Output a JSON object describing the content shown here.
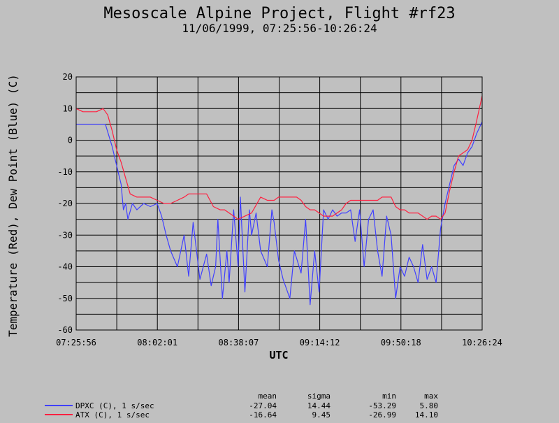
{
  "chart_data": {
    "type": "line",
    "title": "Mesoscale Alpine Project, Flight #rf23",
    "subtitle": "11/06/1999, 07:25:56-10:26:24",
    "xlabel": "UTC",
    "ylabel": "Temperature (Red), Dew Point (Blue) (C)",
    "x_ticks": [
      "07:25:56",
      "08:02:01",
      "08:38:07",
      "09:14:12",
      "09:50:18",
      "10:26:24"
    ],
    "x_range_minutes": [
      0,
      180.47
    ],
    "y_ticks": [
      "20",
      "10",
      "0",
      "-10",
      "-20",
      "-30",
      "-40",
      "-50",
      "-60"
    ],
    "ylim": [
      -60,
      20
    ],
    "grid": true,
    "series": [
      {
        "name": "DPXC (C), 1 s/sec",
        "color": "#4040ff",
        "x_minutes": [
          0,
          5,
          10,
          13,
          16,
          18,
          20,
          21,
          22,
          23,
          25,
          27,
          30,
          33,
          36,
          38,
          40,
          42,
          45,
          48,
          50,
          52,
          55,
          58,
          60,
          62,
          63,
          65,
          67,
          68,
          70,
          72,
          73,
          75,
          77,
          78,
          80,
          82,
          85,
          87,
          88,
          90,
          92,
          95,
          97,
          100,
          102,
          104,
          106,
          108,
          110,
          112,
          114,
          116,
          118,
          120,
          122,
          124,
          126,
          128,
          130,
          132,
          134,
          136,
          138,
          140,
          142,
          144,
          146,
          148,
          150,
          152,
          154,
          156,
          158,
          160,
          162,
          164,
          166,
          168,
          170,
          172,
          174,
          176,
          178,
          180.47
        ],
        "values": [
          5,
          5,
          5,
          5,
          -2,
          -8,
          -14,
          -22,
          -20,
          -25,
          -20,
          -22,
          -20,
          -21,
          -20,
          -24,
          -30,
          -35,
          -40,
          -30,
          -43,
          -26,
          -44,
          -36,
          -46,
          -40,
          -25,
          -50,
          -35,
          -45,
          -22,
          -40,
          -18,
          -48,
          -22,
          -30,
          -23,
          -35,
          -40,
          -22,
          -26,
          -38,
          -44,
          -50,
          -35,
          -42,
          -25,
          -52,
          -35,
          -48,
          -22,
          -25,
          -22,
          -24,
          -23,
          -23,
          -22,
          -32,
          -22,
          -40,
          -25,
          -22,
          -35,
          -43,
          -24,
          -30,
          -50,
          -40,
          -43,
          -37,
          -40,
          -45,
          -33,
          -44,
          -40,
          -45,
          -28,
          -20,
          -14,
          -8,
          -6,
          -8,
          -4,
          -2,
          2,
          5.8
        ]
      },
      {
        "name": "ATX (C), 1 s/sec",
        "color": "#ff2040",
        "x_minutes": [
          0,
          3,
          6,
          9,
          12,
          14,
          16,
          18,
          20,
          22,
          24,
          27,
          30,
          33,
          36,
          39,
          42,
          45,
          48,
          50,
          55,
          58,
          61,
          64,
          66,
          68,
          70,
          72,
          75,
          78,
          82,
          85,
          88,
          90,
          92,
          95,
          98,
          100,
          102,
          104,
          106,
          108,
          110,
          112,
          114,
          116,
          118,
          120,
          122,
          124,
          126,
          128,
          130,
          132,
          134,
          136,
          138,
          140,
          142,
          144,
          146,
          148,
          150,
          152,
          154,
          156,
          158,
          160,
          162,
          164,
          166,
          168,
          170,
          172,
          174,
          176,
          178,
          180.47
        ],
        "values": [
          10,
          9,
          9,
          9,
          10,
          8,
          3,
          -3,
          -7,
          -12,
          -17,
          -18,
          -18,
          -18,
          -19,
          -20,
          -20,
          -19,
          -18,
          -17,
          -17,
          -17,
          -21,
          -22,
          -22,
          -23,
          -24,
          -25,
          -24,
          -23,
          -18,
          -19,
          -19,
          -18,
          -18,
          -18,
          -18,
          -19,
          -21,
          -22,
          -22,
          -23,
          -24,
          -24,
          -24,
          -23,
          -22,
          -20,
          -19,
          -19,
          -19,
          -19,
          -19,
          -19,
          -19,
          -18,
          -18,
          -18,
          -21,
          -22,
          -22,
          -23,
          -23,
          -23,
          -24,
          -25,
          -24,
          -24,
          -25,
          -23,
          -16,
          -10,
          -5,
          -4,
          -3,
          0,
          6,
          14
        ]
      }
    ],
    "stats": {
      "headers": [
        "mean",
        "sigma",
        "min",
        "max"
      ],
      "rows": [
        {
          "label": "DPXC (C), 1 s/sec",
          "color": "#4040ff",
          "values": [
            "-27.04",
            "14.44",
            "-53.29",
            "5.80"
          ]
        },
        {
          "label": "ATX (C), 1 s/sec",
          "color": "#ff2040",
          "values": [
            "-16.64",
            "9.45",
            "-26.99",
            "14.10"
          ]
        }
      ]
    }
  }
}
